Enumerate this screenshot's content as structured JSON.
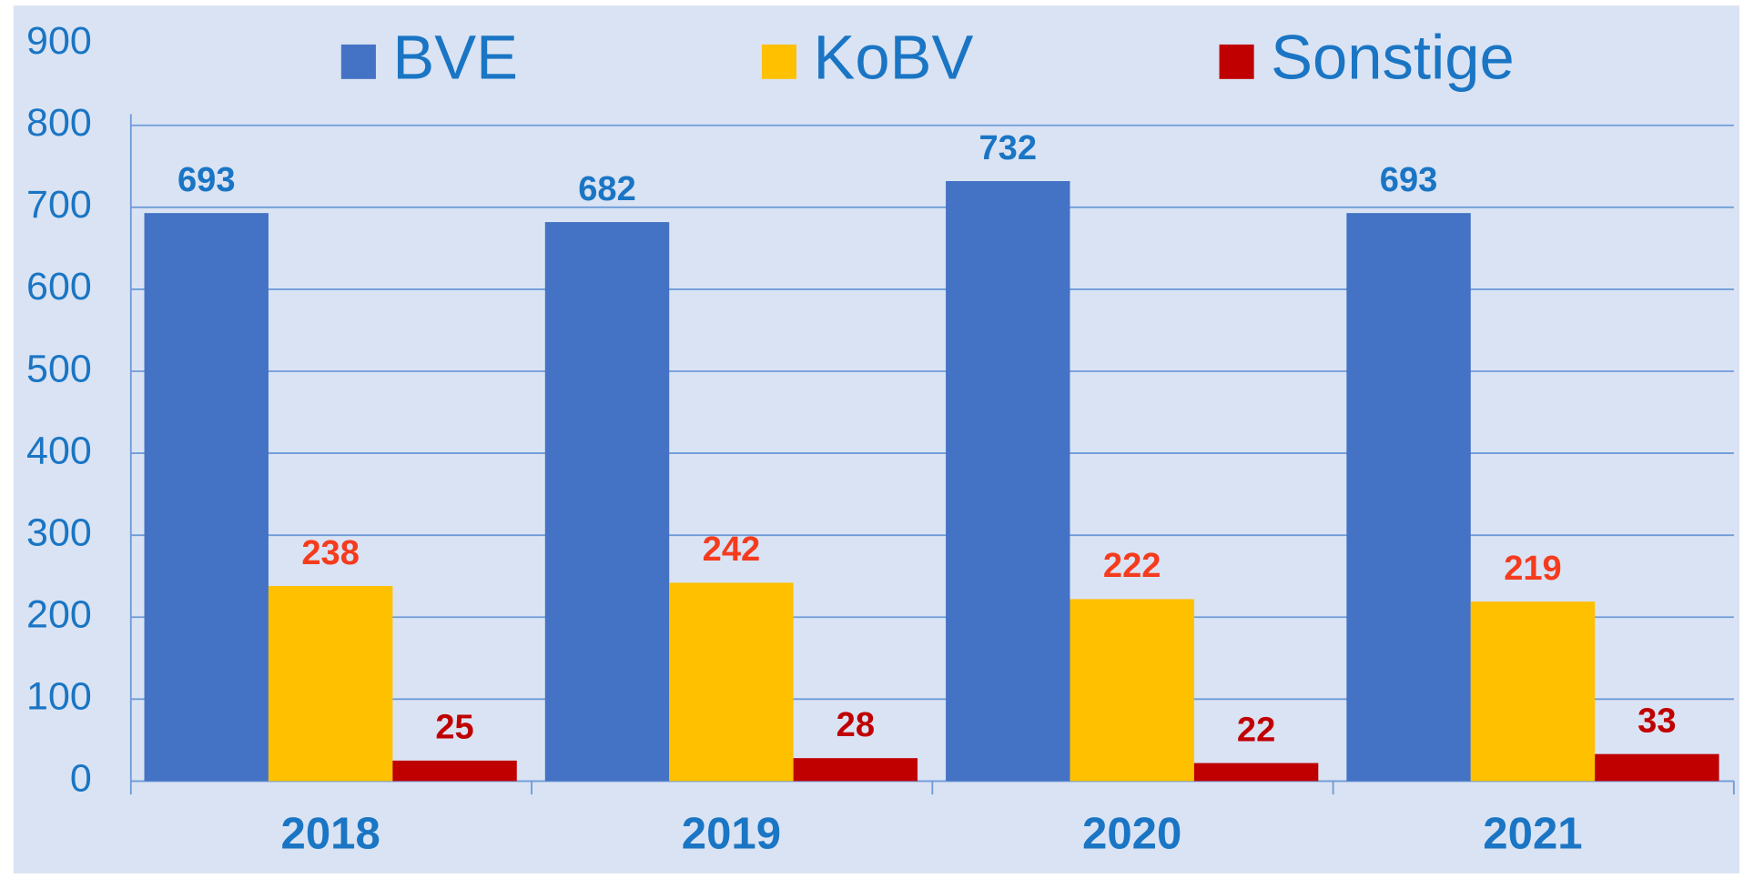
{
  "chart_data": {
    "type": "bar",
    "categories": [
      "2018",
      "2019",
      "2020",
      "2021"
    ],
    "series": [
      {
        "name": "BVE",
        "color": "#4472c4",
        "label_color": "#1a75c4",
        "values": [
          693,
          682,
          732,
          693
        ]
      },
      {
        "name": "KoBV",
        "color": "#ffc000",
        "label_color": "#f53b1e",
        "values": [
          238,
          242,
          222,
          219
        ]
      },
      {
        "name": "Sonstige",
        "color": "#c00000",
        "label_color": "#c00000",
        "values": [
          25,
          28,
          22,
          33
        ]
      }
    ],
    "ylim": [
      0,
      900
    ],
    "yticks": [
      0,
      100,
      200,
      300,
      400,
      500,
      600,
      700,
      800,
      900
    ],
    "grid": true,
    "legend": "top"
  }
}
